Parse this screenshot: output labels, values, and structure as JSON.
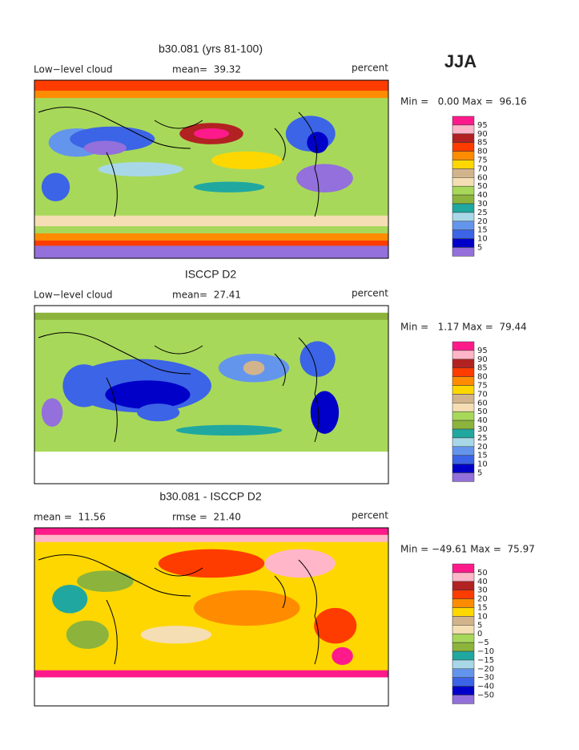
{
  "season": "JJA",
  "panels": [
    {
      "title": "b30.081 (yrs 81-100)",
      "left_label": "Low−level cloud",
      "stat_label": "mean=  39.32",
      "units": "percent",
      "minmax": "Min =   0.00 Max =  96.16",
      "colorbar": {
        "labels": [
          "95",
          "90",
          "85",
          "80",
          "75",
          "70",
          "60",
          "50",
          "40",
          "30",
          "25",
          "20",
          "15",
          "10",
          "5"
        ],
        "colors": [
          "#ff1a8c",
          "#ffb6c8",
          "#b22222",
          "#ff3c00",
          "#ff8c00",
          "#ffd700",
          "#d2b48c",
          "#f5deb3",
          "#a8d85a",
          "#8cb43c",
          "#20a8a0",
          "#a8d8e8",
          "#6495ed",
          "#3c64e6",
          "#0000c8",
          "#9370db"
        ]
      }
    },
    {
      "title": "ISCCP D2",
      "left_label": "Low−level cloud",
      "stat_label": "mean=  27.41",
      "units": "percent",
      "minmax": "Min =   1.17 Max =  79.44",
      "colorbar": {
        "labels": [
          "95",
          "90",
          "85",
          "80",
          "75",
          "70",
          "60",
          "50",
          "40",
          "30",
          "25",
          "20",
          "15",
          "10",
          "5"
        ],
        "colors": [
          "#ff1a8c",
          "#ffb6c8",
          "#b22222",
          "#ff3c00",
          "#ff8c00",
          "#ffd700",
          "#d2b48c",
          "#f5deb3",
          "#a8d85a",
          "#8cb43c",
          "#20a8a0",
          "#a8d8e8",
          "#6495ed",
          "#3c64e6",
          "#0000c8",
          "#9370db"
        ]
      }
    },
    {
      "title": "b30.081 - ISCCP D2",
      "left_label": "mean =  11.56",
      "stat_label": "rmse =  21.40",
      "units": "percent",
      "minmax": "Min = −49.61 Max =  75.97",
      "colorbar": {
        "labels": [
          "50",
          "40",
          "30",
          "20",
          "15",
          "10",
          "5",
          "0",
          "−5",
          "−10",
          "−15",
          "−20",
          "−30",
          "−40",
          "−50"
        ],
        "colors": [
          "#ff1a8c",
          "#ffb6c8",
          "#b22222",
          "#ff3c00",
          "#ff8c00",
          "#ffd700",
          "#d2b48c",
          "#f5deb3",
          "#a8d85a",
          "#8cb43c",
          "#20a8a0",
          "#a8d8e8",
          "#6495ed",
          "#3c64e6",
          "#0000c8",
          "#9370db"
        ]
      }
    }
  ]
}
